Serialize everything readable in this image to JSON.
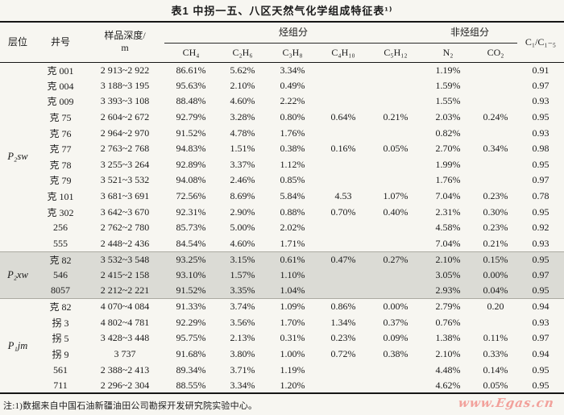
{
  "title": "表1  中拐一五、八区天然气化学组成特征表¹⁾",
  "columns": {
    "horizon": "层位",
    "well": "井号",
    "depth_line1": "样品深度/",
    "depth_line2": "m",
    "hydrocarbon_group": "烃组分",
    "non_hydrocarbon_group": "非烃组分",
    "ch4": "CH₄",
    "c2h6": "C₂H₆",
    "c3h8": "C₃H₈",
    "c4h10": "C₄H₁₀",
    "c5h12": "C₅H₁₂",
    "n2": "N₂",
    "co2": "CO₂",
    "ratio": "C₁/C₁₋₅"
  },
  "sections": [
    {
      "horizon": "P₂sw",
      "shaded": false,
      "rows": [
        [
          "克 001",
          "2 913~2 922",
          "86.61%",
          "5.62%",
          "3.34%",
          "",
          "",
          "1.19%",
          "",
          "0.91"
        ],
        [
          "克 004",
          "3 188~3 195",
          "95.63%",
          "2.10%",
          "0.49%",
          "",
          "",
          "1.59%",
          "",
          "0.97"
        ],
        [
          "克 009",
          "3 393~3 108",
          "88.48%",
          "4.60%",
          "2.22%",
          "",
          "",
          "1.55%",
          "",
          "0.93"
        ],
        [
          "克 75",
          "2 604~2 672",
          "92.79%",
          "3.28%",
          "0.80%",
          "0.64%",
          "0.21%",
          "2.03%",
          "0.24%",
          "0.95"
        ],
        [
          "克 76",
          "2 964~2 970",
          "91.52%",
          "4.78%",
          "1.76%",
          "",
          "",
          "0.82%",
          "",
          "0.93"
        ],
        [
          "克 77",
          "2 763~2 768",
          "94.83%",
          "1.51%",
          "0.38%",
          "0.16%",
          "0.05%",
          "2.70%",
          "0.34%",
          "0.98"
        ],
        [
          "克 78",
          "3 255~3 264",
          "92.89%",
          "3.37%",
          "1.12%",
          "",
          "",
          "1.99%",
          "",
          "0.95"
        ],
        [
          "克 79",
          "3 521~3 532",
          "94.08%",
          "2.46%",
          "0.85%",
          "",
          "",
          "1.76%",
          "",
          "0.97"
        ],
        [
          "克 101",
          "3 681~3 691",
          "72.56%",
          "8.69%",
          "5.84%",
          "4.53",
          "1.07%",
          "7.04%",
          "0.23%",
          "0.78"
        ],
        [
          "克 302",
          "3 642~3 670",
          "92.31%",
          "2.90%",
          "0.88%",
          "0.70%",
          "0.40%",
          "2.31%",
          "0.30%",
          "0.95"
        ],
        [
          "256",
          "2 762~2 780",
          "85.73%",
          "5.00%",
          "2.02%",
          "",
          "",
          "4.58%",
          "0.23%",
          "0.92"
        ],
        [
          "555",
          "2 448~2 436",
          "84.54%",
          "4.60%",
          "1.71%",
          "",
          "",
          "7.04%",
          "0.21%",
          "0.93"
        ]
      ]
    },
    {
      "horizon": "P₂xw",
      "shaded": true,
      "rows": [
        [
          "克 82",
          "3 532~3 548",
          "93.25%",
          "3.15%",
          "0.61%",
          "0.47%",
          "0.27%",
          "2.10%",
          "0.15%",
          "0.95"
        ],
        [
          "546",
          "2 415~2 158",
          "93.10%",
          "1.57%",
          "1.10%",
          "",
          "",
          "3.05%",
          "0.00%",
          "0.97"
        ],
        [
          "8057",
          "2 212~2 221",
          "91.52%",
          "3.35%",
          "1.04%",
          "",
          "",
          "2.93%",
          "0.04%",
          "0.95"
        ]
      ]
    },
    {
      "horizon": "P₁jm",
      "shaded": false,
      "rows": [
        [
          "克 82",
          "4 070~4 084",
          "91.33%",
          "3.74%",
          "1.09%",
          "0.86%",
          "0.00%",
          "2.79%",
          "0.20",
          "0.94"
        ],
        [
          "拐 3",
          "4 802~4 781",
          "92.29%",
          "3.56%",
          "1.70%",
          "1.34%",
          "0.37%",
          "0.76%",
          "",
          "0.93"
        ],
        [
          "拐 5",
          "3 428~3 448",
          "95.75%",
          "2.13%",
          "0.31%",
          "0.23%",
          "0.09%",
          "1.38%",
          "0.11%",
          "0.97"
        ],
        [
          "拐 9",
          "3 737",
          "91.68%",
          "3.80%",
          "1.00%",
          "0.72%",
          "0.38%",
          "2.10%",
          "0.33%",
          "0.94"
        ],
        [
          "561",
          "2 388~2 413",
          "89.34%",
          "3.71%",
          "1.19%",
          "",
          "",
          "4.48%",
          "0.14%",
          "0.95"
        ],
        [
          "711",
          "2 296~2 304",
          "88.55%",
          "3.34%",
          "1.20%",
          "",
          "",
          "4.62%",
          "0.05%",
          "0.95"
        ]
      ]
    }
  ],
  "footnote": "注:1)数据来自中国石油新疆油田公司勘探开发研究院实验中心。",
  "watermark": "www.Egas.cn",
  "colors": {
    "page_background": "#f7f6f1",
    "shaded_band": "#dbdbd5",
    "rule": "#161616",
    "watermark": "#f2a19b"
  }
}
